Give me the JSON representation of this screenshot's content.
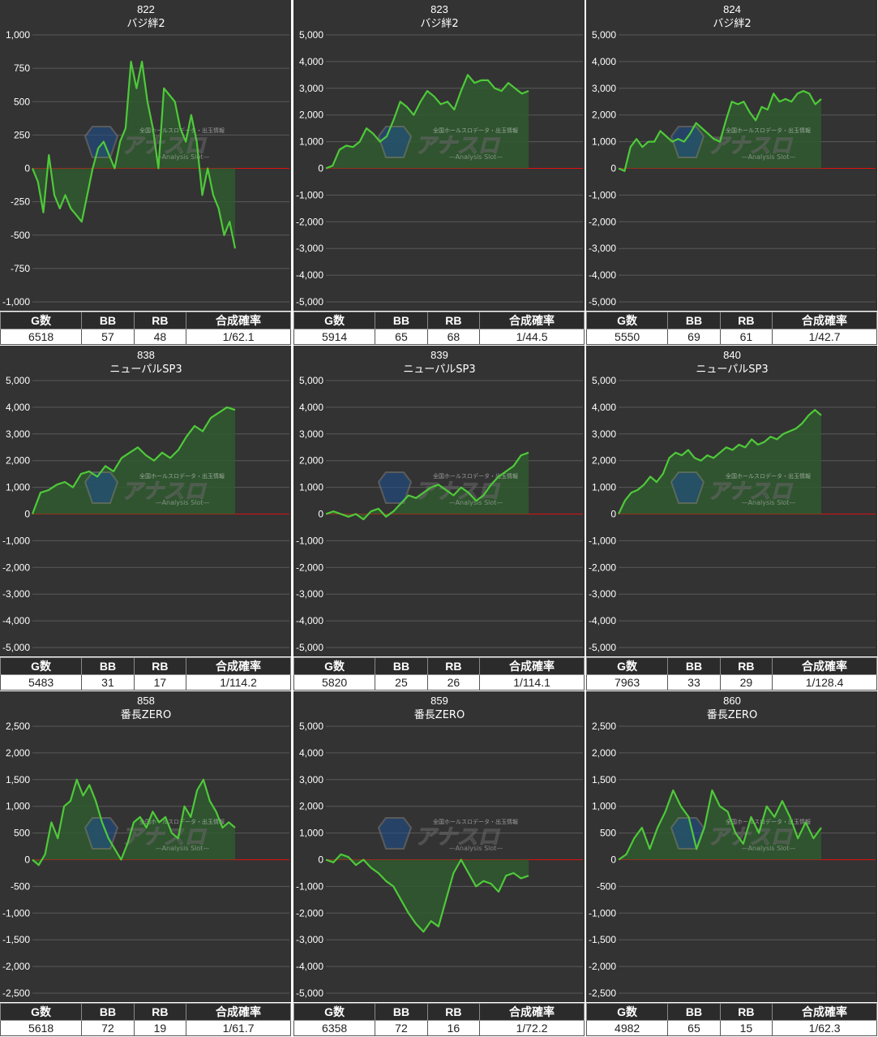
{
  "colors": {
    "bg": "#333333",
    "grid": "#5a5a5a",
    "zero": "#e01010",
    "line": "#4fc93a",
    "fill": "#2f5a2f",
    "text": "#ffffff"
  },
  "watermark": {
    "text": "アナスロ",
    "sub": "—Analysis Slot—",
    "tag": "全国ホールスロデータ・出玉情報"
  },
  "table_headers": [
    "G数",
    "BB",
    "RB",
    "合成確率"
  ],
  "panels": [
    {
      "id": "822",
      "title": "822",
      "subtitle": "バジ絆2",
      "stats": {
        "games": "6518",
        "bb": "57",
        "rb": "48",
        "prob": "1/62.1"
      },
      "chart_data": {
        "type": "area",
        "ylim": [
          -1000,
          1000
        ],
        "yticks": [
          1000,
          750,
          500,
          250,
          0,
          -250,
          -500,
          -750,
          -1000
        ],
        "values": [
          0,
          -100,
          -330,
          100,
          -200,
          -300,
          -200,
          -300,
          -350,
          -400,
          -200,
          0,
          150,
          200,
          100,
          0,
          200,
          300,
          800,
          600,
          800,
          500,
          300,
          0,
          600,
          550,
          500,
          300,
          200,
          400,
          200,
          -200,
          0,
          -200,
          -300,
          -500,
          -400,
          -600
        ]
      }
    },
    {
      "id": "823",
      "title": "823",
      "subtitle": "バジ絆2",
      "stats": {
        "games": "5914",
        "bb": "65",
        "rb": "68",
        "prob": "1/44.5"
      },
      "chart_data": {
        "type": "area",
        "ylim": [
          -5000,
          5000
        ],
        "yticks": [
          5000,
          4000,
          3000,
          2000,
          1000,
          0,
          -1000,
          -2000,
          -3000,
          -4000,
          -5000
        ],
        "values": [
          0,
          100,
          700,
          850,
          800,
          1000,
          1500,
          1300,
          1000,
          1200,
          1800,
          2500,
          2300,
          2000,
          2500,
          2900,
          2700,
          2400,
          2500,
          2200,
          2900,
          3500,
          3200,
          3300,
          3300,
          3000,
          2900,
          3200,
          3000,
          2800,
          2900
        ]
      }
    },
    {
      "id": "824",
      "title": "824",
      "subtitle": "バジ絆2",
      "stats": {
        "games": "5550",
        "bb": "69",
        "rb": "61",
        "prob": "1/42.7"
      },
      "chart_data": {
        "type": "area",
        "ylim": [
          -5000,
          5000
        ],
        "yticks": [
          5000,
          4000,
          3000,
          2000,
          1000,
          0,
          -1000,
          -2000,
          -3000,
          -4000,
          -5000
        ],
        "values": [
          0,
          -100,
          800,
          1100,
          800,
          1000,
          1000,
          1400,
          1200,
          1000,
          1100,
          1000,
          1300,
          1700,
          1500,
          1300,
          1100,
          1000,
          1800,
          2500,
          2400,
          2500,
          2100,
          1800,
          2300,
          2200,
          2800,
          2500,
          2600,
          2500,
          2800,
          2900,
          2800,
          2400,
          2600
        ]
      }
    },
    {
      "id": "838",
      "title": "838",
      "subtitle": "ニューパルSP3",
      "stats": {
        "games": "5483",
        "bb": "31",
        "rb": "17",
        "prob": "1/114.2"
      },
      "chart_data": {
        "type": "area",
        "ylim": [
          -5000,
          5000
        ],
        "yticks": [
          5000,
          4000,
          3000,
          2000,
          1000,
          0,
          -1000,
          -2000,
          -3000,
          -4000,
          -5000
        ],
        "values": [
          0,
          800,
          900,
          1100,
          1200,
          1000,
          1500,
          1600,
          1400,
          1800,
          1600,
          2100,
          2300,
          2500,
          2200,
          2000,
          2300,
          2100,
          2400,
          2900,
          3300,
          3100,
          3600,
          3800,
          4000,
          3900
        ]
      }
    },
    {
      "id": "839",
      "title": "839",
      "subtitle": "ニューパルSP3",
      "stats": {
        "games": "5820",
        "bb": "25",
        "rb": "26",
        "prob": "1/114.1"
      },
      "chart_data": {
        "type": "area",
        "ylim": [
          -5000,
          5000
        ],
        "yticks": [
          5000,
          4000,
          3000,
          2000,
          1000,
          0,
          -1000,
          -2000,
          -3000,
          -4000,
          -5000
        ],
        "values": [
          0,
          100,
          0,
          -100,
          0,
          -200,
          100,
          200,
          -100,
          100,
          400,
          700,
          600,
          800,
          1000,
          1100,
          900,
          700,
          1000,
          800,
          500,
          700,
          1100,
          1400,
          1600,
          1800,
          2200,
          2300
        ]
      }
    },
    {
      "id": "840",
      "title": "840",
      "subtitle": "ニューパルSP3",
      "stats": {
        "games": "7963",
        "bb": "33",
        "rb": "29",
        "prob": "1/128.4"
      },
      "chart_data": {
        "type": "area",
        "ylim": [
          -5000,
          5000
        ],
        "yticks": [
          5000,
          4000,
          3000,
          2000,
          1000,
          0,
          -1000,
          -2000,
          -3000,
          -4000,
          -5000
        ],
        "values": [
          0,
          500,
          800,
          900,
          1100,
          1400,
          1200,
          1500,
          2100,
          2300,
          2200,
          2400,
          2100,
          2000,
          2200,
          2100,
          2300,
          2500,
          2400,
          2600,
          2500,
          2800,
          2600,
          2700,
          2900,
          2800,
          3000,
          3100,
          3200,
          3400,
          3700,
          3900,
          3700
        ]
      }
    },
    {
      "id": "858",
      "title": "858",
      "subtitle": "番長ZERO",
      "stats": {
        "games": "5618",
        "bb": "72",
        "rb": "19",
        "prob": "1/61.7"
      },
      "chart_data": {
        "type": "area",
        "ylim": [
          -2500,
          2500
        ],
        "yticks": [
          2500,
          2000,
          1500,
          1000,
          500,
          0,
          -500,
          -1000,
          -1500,
          -2000,
          -2500
        ],
        "values": [
          0,
          -100,
          100,
          700,
          400,
          1000,
          1100,
          1500,
          1200,
          1400,
          1100,
          700,
          400,
          200,
          0,
          300,
          700,
          800,
          600,
          900,
          700,
          800,
          500,
          400,
          1000,
          800,
          1300,
          1500,
          1100,
          900,
          600,
          700,
          600
        ]
      }
    },
    {
      "id": "859",
      "title": "859",
      "subtitle": "番長ZERO",
      "stats": {
        "games": "6358",
        "bb": "72",
        "rb": "16",
        "prob": "1/72.2"
      },
      "chart_data": {
        "type": "area",
        "ylim": [
          -5000,
          5000
        ],
        "yticks": [
          5000,
          4000,
          3000,
          2000,
          1000,
          0,
          -1000,
          -2000,
          -3000,
          -4000,
          -5000
        ],
        "values": [
          0,
          -100,
          200,
          100,
          -200,
          0,
          -300,
          -500,
          -800,
          -1000,
          -1500,
          -2000,
          -2400,
          -2700,
          -2300,
          -2500,
          -1500,
          -500,
          0,
          -500,
          -1000,
          -800,
          -900,
          -1200,
          -600,
          -500,
          -700,
          -600
        ]
      }
    },
    {
      "id": "860",
      "title": "860",
      "subtitle": "番長ZERO",
      "stats": {
        "games": "4982",
        "bb": "65",
        "rb": "15",
        "prob": "1/62.3"
      },
      "chart_data": {
        "type": "area",
        "ylim": [
          -2500,
          2500
        ],
        "yticks": [
          2500,
          2000,
          1500,
          1000,
          500,
          0,
          -500,
          -1000,
          -1500,
          -2000,
          -2500
        ],
        "values": [
          0,
          100,
          400,
          600,
          200,
          600,
          900,
          1300,
          1000,
          800,
          200,
          600,
          1300,
          1000,
          900,
          500,
          300,
          800,
          500,
          1000,
          800,
          1100,
          800,
          400,
          700,
          400,
          600
        ]
      }
    }
  ]
}
